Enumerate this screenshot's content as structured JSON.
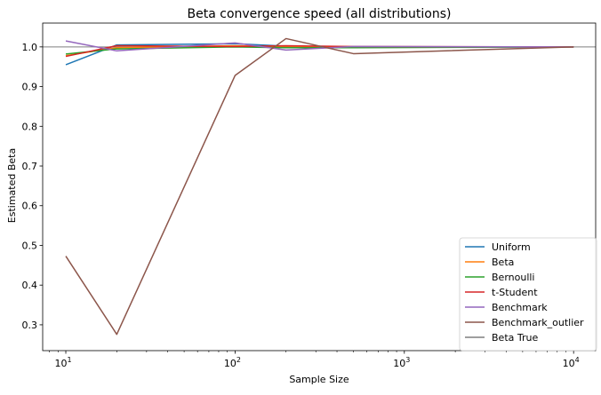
{
  "chart_data": {
    "type": "line",
    "title": "Beta convergence speed (all distributions)",
    "xlabel": "Sample Size",
    "ylabel": "Estimated Beta",
    "xscale": "log",
    "xlim": [
      7.3,
      13500
    ],
    "ylim": [
      0.235,
      1.06
    ],
    "xticks": [
      {
        "value": 10,
        "base": "10",
        "exp": "1"
      },
      {
        "value": 100,
        "base": "10",
        "exp": "2"
      },
      {
        "value": 1000,
        "base": "10",
        "exp": "3"
      },
      {
        "value": 10000,
        "base": "10",
        "exp": "4"
      }
    ],
    "yticks": [
      {
        "value": 0.3,
        "label": "0.3"
      },
      {
        "value": 0.4,
        "label": "0.4"
      },
      {
        "value": 0.5,
        "label": "0.5"
      },
      {
        "value": 0.6,
        "label": "0.6"
      },
      {
        "value": 0.7,
        "label": "0.7"
      },
      {
        "value": 0.8,
        "label": "0.8"
      },
      {
        "value": 0.9,
        "label": "0.9"
      },
      {
        "value": 1.0,
        "label": "1.0"
      }
    ],
    "grid": false,
    "legend_position": "lower-right",
    "x": [
      10,
      20,
      100,
      200,
      500,
      10000
    ],
    "series": [
      {
        "name": "Uniform",
        "color": "#1f77b4",
        "values": [
          0.955,
          1.005,
          1.008,
          1.002,
          1.0,
          1.0
        ]
      },
      {
        "name": "Beta",
        "color": "#ff7f0e",
        "values": [
          0.978,
          0.998,
          1.003,
          1.0,
          1.0,
          1.0
        ]
      },
      {
        "name": "Bernoulli",
        "color": "#2ca02c",
        "values": [
          0.982,
          0.995,
          1.0,
          0.998,
          0.998,
          1.0
        ]
      },
      {
        "name": "t-Student",
        "color": "#d62728",
        "values": [
          0.976,
          1.003,
          1.001,
          1.003,
          1.001,
          1.0
        ]
      },
      {
        "name": "Benchmark",
        "color": "#9467bd",
        "values": [
          1.015,
          0.99,
          1.01,
          0.992,
          1.001,
          1.0
        ]
      },
      {
        "name": "Benchmark_outlier",
        "color": "#8c564b",
        "values": [
          0.473,
          0.276,
          0.928,
          1.021,
          0.983,
          1.0
        ]
      }
    ],
    "reference_line": {
      "name": "Beta True",
      "value": 1.0,
      "color": "#7f7f7f"
    }
  }
}
